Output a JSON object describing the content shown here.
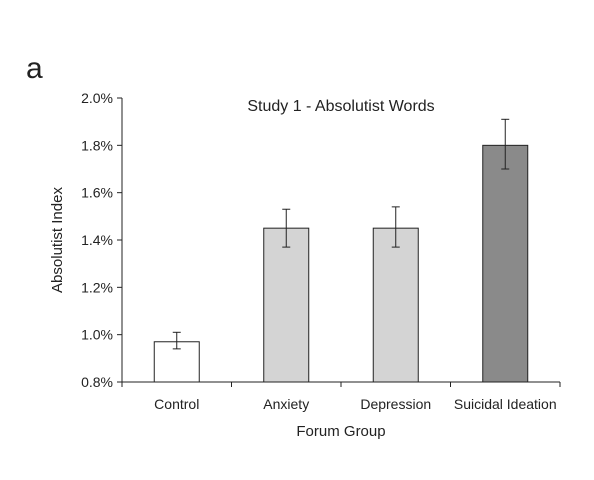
{
  "panel_label": "a",
  "chart_data": {
    "type": "bar",
    "title": "Study 1 -  Absolutist Words",
    "xlabel": "Forum Group",
    "ylabel": "Absolutist Index",
    "categories": [
      "Control",
      "Anxiety",
      "Depression",
      "Suicidal Ideation"
    ],
    "values": [
      0.97,
      1.45,
      1.45,
      1.8
    ],
    "error_low": [
      0.94,
      1.37,
      1.37,
      1.7
    ],
    "error_high": [
      1.01,
      1.53,
      1.54,
      1.91
    ],
    "bar_colors": [
      "#ffffff",
      "#d4d4d4",
      "#d4d4d4",
      "#8a8a8a"
    ],
    "ylim": [
      0.8,
      2.0
    ],
    "yticks": [
      0.8,
      1.0,
      1.2,
      1.4,
      1.6,
      1.8,
      2.0
    ],
    "ytick_labels": [
      "0.8%",
      "1.0%",
      "1.2%",
      "1.4%",
      "1.6%",
      "1.8%",
      "2.0%"
    ],
    "grid": false
  }
}
